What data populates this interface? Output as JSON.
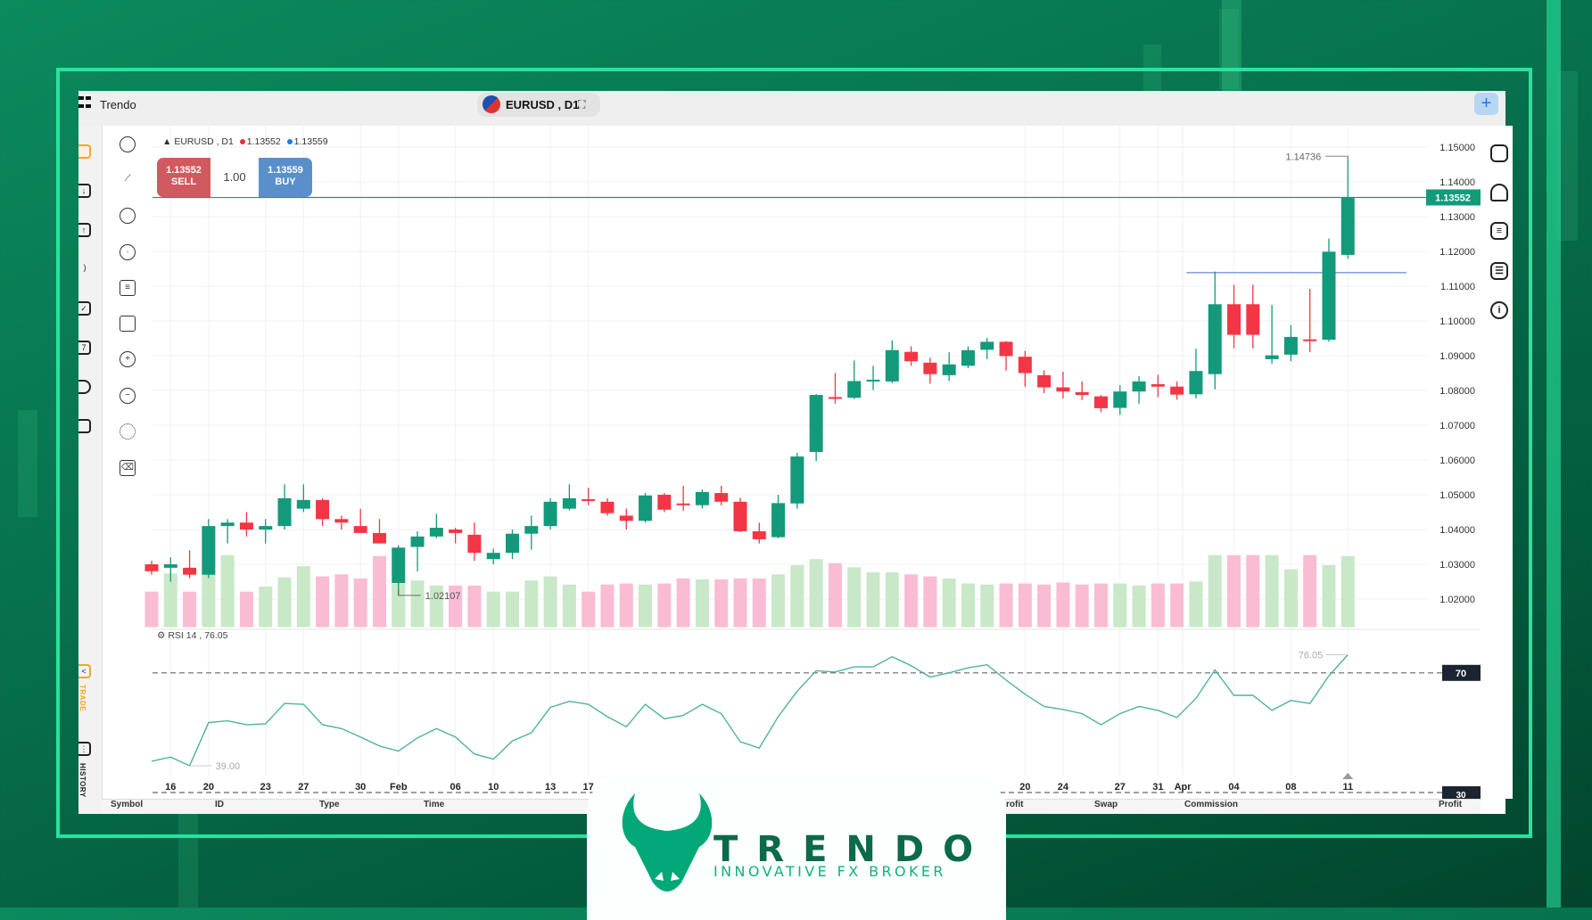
{
  "app": {
    "title": "Trendo"
  },
  "symbol_pill": {
    "label": "EURUSD , D1"
  },
  "legend": {
    "symbol": "EURUSD , D1",
    "bid": "1.13552",
    "ask": "1.13559",
    "bid_color": "#e0303e",
    "ask_color": "#1c7de0"
  },
  "trade": {
    "sell_price": "1.13552",
    "sell_label": "SELL",
    "lot": "1.00",
    "buy_price": "1.13559",
    "buy_label": "BUY"
  },
  "sidebar": {
    "trade_label": "TRADE",
    "history_label": "HISTORY"
  },
  "rsi": {
    "title": "RSI 14 , 76.05",
    "level_high": "70",
    "level_low": "30",
    "min_label": "39.00",
    "last_label": "76.05"
  },
  "table_headers": [
    "Symbol",
    "ID",
    "Type",
    "Time",
    "rofit",
    "Swap",
    "Commission",
    "Profit"
  ],
  "logo": {
    "word": "TRENDO",
    "tagline": "INNOVATIVE FX BROKER"
  },
  "colors": {
    "up": "#139a7a",
    "down": "#f23645",
    "vol_up": "#c8e8c8",
    "vol_down": "#f9bcd2",
    "rsi_line": "#4fb39a",
    "accent": "#1ee3a0"
  },
  "chart_data": {
    "type": "candlestick",
    "price_ticks": [
      "1.15000",
      "1.14000",
      "1.13000",
      "1.12000",
      "1.11000",
      "1.10000",
      "1.09000",
      "1.08000",
      "1.07000",
      "1.06000",
      "1.05000",
      "1.04000",
      "1.03000",
      "1.02000"
    ],
    "current_price": "1.13552",
    "high_label": "1.14736",
    "low_label": "1.02107",
    "horizontal_line": 1.1139,
    "x_labels": [
      {
        "i": 1,
        "t": "16"
      },
      {
        "i": 3,
        "t": "20"
      },
      {
        "i": 6,
        "t": "23"
      },
      {
        "i": 8,
        "t": "27"
      },
      {
        "i": 11,
        "t": "30"
      },
      {
        "i": 13,
        "t": "Feb"
      },
      {
        "i": 16,
        "t": "06"
      },
      {
        "i": 18,
        "t": "10"
      },
      {
        "i": 21,
        "t": "13"
      },
      {
        "i": 23,
        "t": "17"
      },
      {
        "i": 46,
        "t": "20"
      },
      {
        "i": 48,
        "t": "24"
      },
      {
        "i": 51,
        "t": "27"
      },
      {
        "i": 53,
        "t": "31"
      },
      {
        "i": 54.3,
        "t": "Apr"
      },
      {
        "i": 57,
        "t": "04"
      },
      {
        "i": 60,
        "t": "08"
      },
      {
        "i": 63,
        "t": "11"
      }
    ],
    "ohlc": [
      [
        1.03,
        1.031,
        1.027,
        1.028
      ],
      [
        1.029,
        1.032,
        1.025,
        1.03
      ],
      [
        1.029,
        1.034,
        1.026,
        1.027
      ],
      [
        1.027,
        1.043,
        1.026,
        1.041
      ],
      [
        1.041,
        1.043,
        1.036,
        1.042
      ],
      [
        1.042,
        1.045,
        1.038,
        1.04
      ],
      [
        1.04,
        1.043,
        1.036,
        1.041
      ],
      [
        1.041,
        1.053,
        1.04,
        1.049
      ],
      [
        1.046,
        1.053,
        1.045,
        1.0485
      ],
      [
        1.0485,
        1.049,
        1.041,
        1.043
      ],
      [
        1.043,
        1.044,
        1.04,
        1.042
      ],
      [
        1.041,
        1.046,
        1.039,
        1.039
      ],
      [
        1.039,
        1.043,
        1.036,
        1.036
      ],
      [
        1.0246,
        1.0355,
        1.02107,
        1.0348
      ],
      [
        1.035,
        1.0395,
        1.028,
        1.038
      ],
      [
        1.038,
        1.0445,
        1.0375,
        1.0405
      ],
      [
        1.04,
        1.0405,
        1.036,
        1.039
      ],
      [
        1.0385,
        1.042,
        1.031,
        1.0333
      ],
      [
        1.0315,
        1.0345,
        1.03,
        1.0333
      ],
      [
        1.0333,
        1.04,
        1.0315,
        1.0388
      ],
      [
        1.0388,
        1.044,
        1.0342,
        1.041
      ],
      [
        1.041,
        1.049,
        1.04,
        1.048
      ],
      [
        1.046,
        1.053,
        1.0455,
        1.049
      ],
      [
        1.0487,
        1.052,
        1.047,
        1.0485
      ],
      [
        1.048,
        1.049,
        1.044,
        1.0447
      ],
      [
        1.044,
        1.046,
        1.04,
        1.0425
      ],
      [
        1.0425,
        1.0505,
        1.042,
        1.0498
      ],
      [
        1.05,
        1.0505,
        1.045,
        1.0457
      ],
      [
        1.0475,
        1.0526,
        1.0454,
        1.0472
      ],
      [
        1.047,
        1.0515,
        1.046,
        1.0508
      ],
      [
        1.0505,
        1.0526,
        1.047,
        1.048
      ],
      [
        1.048,
        1.0491,
        1.0393,
        1.0395
      ],
      [
        1.0395,
        1.042,
        1.036,
        1.0372
      ],
      [
        1.0378,
        1.05,
        1.0375,
        1.0476
      ],
      [
        1.0475,
        1.062,
        1.046,
        1.061
      ],
      [
        1.0623,
        1.079,
        1.0597,
        1.0787
      ],
      [
        1.0781,
        1.085,
        1.0762,
        1.078
      ],
      [
        1.0779,
        1.0886,
        1.0775,
        1.0827
      ],
      [
        1.083,
        1.0871,
        1.0801,
        1.0831
      ],
      [
        1.0826,
        1.0944,
        1.0821,
        1.0916
      ],
      [
        1.0911,
        1.0927,
        1.0871,
        1.0884
      ],
      [
        1.088,
        1.0894,
        1.082,
        1.0847
      ],
      [
        1.0844,
        1.091,
        1.0827,
        1.0875
      ],
      [
        1.0871,
        1.0927,
        1.0864,
        1.0916
      ],
      [
        1.0917,
        1.0951,
        1.089,
        1.094
      ],
      [
        1.094,
        1.0942,
        1.0857,
        1.0899
      ],
      [
        1.0897,
        1.0914,
        1.0811,
        1.085
      ],
      [
        1.0844,
        1.0858,
        1.0792,
        1.0809
      ],
      [
        1.0809,
        1.0854,
        1.0777,
        1.0797
      ],
      [
        1.0795,
        1.0826,
        1.0773,
        1.0787
      ],
      [
        1.0783,
        1.0787,
        1.0738,
        1.0749
      ],
      [
        1.075,
        1.0815,
        1.073,
        1.0797
      ],
      [
        1.0797,
        1.0841,
        1.0762,
        1.0826
      ],
      [
        1.0818,
        1.0845,
        1.0781,
        1.0811
      ],
      [
        1.0811,
        1.0826,
        1.0774,
        1.0788
      ],
      [
        1.0789,
        1.092,
        1.0777,
        1.0856
      ],
      [
        1.0847,
        1.1142,
        1.0803,
        1.1048
      ],
      [
        1.1048,
        1.1104,
        1.0921,
        1.096
      ],
      [
        1.1048,
        1.1104,
        1.0921,
        1.096
      ],
      [
        1.089,
        1.1046,
        1.0877,
        1.0901
      ],
      [
        1.0903,
        1.0988,
        1.0884,
        1.0954
      ],
      [
        1.0947,
        1.1092,
        1.091,
        1.0945
      ],
      [
        1.0946,
        1.1237,
        1.094,
        1.1199
      ],
      [
        1.119,
        1.14736,
        1.1179,
        1.13552
      ]
    ],
    "volume": [
      35,
      53,
      35,
      53,
      71,
      35,
      40,
      49,
      60,
      50,
      52,
      48,
      70,
      43,
      46,
      41,
      41,
      41,
      35,
      35,
      46,
      50,
      42,
      35,
      42,
      43,
      42,
      43,
      48,
      47,
      47,
      48,
      48,
      52,
      61,
      67,
      63,
      59,
      54,
      54,
      52,
      50,
      48,
      43,
      42,
      43,
      43,
      42,
      44,
      42,
      43,
      43,
      41,
      43,
      43,
      45,
      71,
      71,
      71,
      71,
      57,
      71,
      61,
      70
    ],
    "rsi": [
      40.5,
      41.9,
      39.0,
      53.4,
      54.0,
      52.7,
      53.0,
      59.8,
      59.5,
      52.7,
      51.4,
      48.6,
      45.6,
      43.9,
      48.3,
      51.4,
      48.6,
      42.9,
      41.2,
      47.3,
      50.0,
      58.5,
      60.5,
      59.5,
      55.4,
      52.0,
      59.5,
      54.7,
      55.8,
      59.5,
      56.4,
      47.0,
      44.9,
      55.4,
      63.9,
      70.7,
      70.3,
      72.0,
      72.0,
      75.4,
      72.4,
      68.6,
      70.0,
      71.7,
      72.7,
      67.6,
      62.9,
      58.8,
      57.8,
      56.4,
      52.7,
      56.4,
      58.8,
      57.5,
      55.1,
      61.5,
      71.0,
      62.5,
      62.5,
      57.5,
      60.8,
      59.8,
      69.0,
      76.05
    ]
  }
}
